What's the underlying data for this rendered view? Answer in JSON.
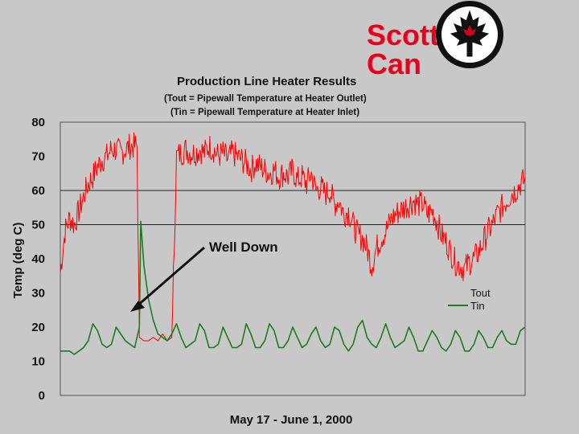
{
  "logo": {
    "text": "Scott\nCan",
    "colors": {
      "text": "#e8001c",
      "badge_bg": "#111111",
      "badge_face": "#ffffff",
      "leaf": "#111111",
      "leaf_accent": "#d2001e"
    }
  },
  "chart_data": {
    "type": "line",
    "title": "Production Line Heater Results",
    "subtitle_lines": [
      "(Tout = Pipewall Temperature at Heater Outlet)",
      "(Tin = Pipewall Temperature at Heater Inlet)"
    ],
    "xlabel": "May 17 - June 1, 2000",
    "ylabel": "Temp (deg C)",
    "ylim": [
      0,
      80
    ],
    "yticks": [
      0,
      10,
      20,
      30,
      40,
      50,
      60,
      70,
      80
    ],
    "gridlines_y": [
      50,
      60
    ],
    "legend": {
      "placement": "right",
      "entries": [
        "Tout",
        "Tin"
      ]
    },
    "annotation": {
      "text": "Well Down",
      "points_to": "Tin"
    },
    "x_domain": [
      0,
      100
    ],
    "series": [
      {
        "name": "Tout",
        "color": "#ff0000",
        "points": [
          [
            0,
            36
          ],
          [
            1,
            48
          ],
          [
            2,
            52
          ],
          [
            3,
            50
          ],
          [
            4,
            54
          ],
          [
            5,
            58
          ],
          [
            6,
            62
          ],
          [
            7,
            64
          ],
          [
            8,
            67
          ],
          [
            9,
            69
          ],
          [
            10,
            70
          ],
          [
            11,
            72
          ],
          [
            12,
            72
          ],
          [
            13,
            71
          ],
          [
            14,
            72
          ],
          [
            15,
            73
          ],
          [
            16,
            73
          ],
          [
            16.5,
            73
          ],
          [
            17,
            17
          ],
          [
            18,
            16
          ],
          [
            19,
            16
          ],
          [
            20,
            17
          ],
          [
            21,
            16
          ],
          [
            22,
            18
          ],
          [
            23,
            16
          ],
          [
            24,
            17
          ],
          [
            25,
            70
          ],
          [
            26,
            71
          ],
          [
            27,
            72
          ],
          [
            28,
            71
          ],
          [
            29,
            71
          ],
          [
            30,
            72
          ],
          [
            31,
            71
          ],
          [
            32,
            73
          ],
          [
            33,
            72
          ],
          [
            34,
            70
          ],
          [
            35,
            71
          ],
          [
            36,
            69
          ],
          [
            37,
            71
          ],
          [
            38,
            70
          ],
          [
            39,
            69
          ],
          [
            40,
            68
          ],
          [
            41,
            66
          ],
          [
            42,
            68
          ],
          [
            43,
            67
          ],
          [
            44,
            66
          ],
          [
            45,
            65
          ],
          [
            46,
            66
          ],
          [
            47,
            64
          ],
          [
            48,
            65
          ],
          [
            49,
            64
          ],
          [
            50,
            66
          ],
          [
            51,
            63
          ],
          [
            52,
            64
          ],
          [
            53,
            62
          ],
          [
            54,
            65
          ],
          [
            55,
            60
          ],
          [
            56,
            61
          ],
          [
            57,
            59
          ],
          [
            58,
            60
          ],
          [
            59,
            56
          ],
          [
            60,
            57
          ],
          [
            61,
            53
          ],
          [
            62,
            54
          ],
          [
            63,
            50
          ],
          [
            64,
            47
          ],
          [
            65,
            46
          ],
          [
            66,
            43
          ],
          [
            67,
            38
          ],
          [
            68,
            43
          ],
          [
            69,
            46
          ],
          [
            70,
            48
          ],
          [
            71,
            51
          ],
          [
            72,
            53
          ],
          [
            73,
            54
          ],
          [
            74,
            55
          ],
          [
            75,
            56
          ],
          [
            76,
            57
          ],
          [
            77,
            56
          ],
          [
            78,
            56
          ],
          [
            79,
            53
          ],
          [
            80,
            54
          ],
          [
            81,
            51
          ],
          [
            82,
            47
          ],
          [
            83,
            45
          ],
          [
            84,
            42
          ],
          [
            85,
            39
          ],
          [
            86,
            38
          ],
          [
            87,
            37
          ],
          [
            88,
            39
          ],
          [
            89,
            40
          ],
          [
            90,
            42
          ],
          [
            91,
            45
          ],
          [
            92,
            48
          ],
          [
            93,
            50
          ],
          [
            94,
            53
          ],
          [
            95,
            55
          ],
          [
            96,
            57
          ],
          [
            97,
            59
          ],
          [
            98,
            60
          ],
          [
            99,
            62
          ],
          [
            100,
            63
          ]
        ],
        "noise_amplitude": 4
      },
      {
        "name": "Tin",
        "color": "#1b7d1b",
        "points": [
          [
            0,
            13
          ],
          [
            1,
            13
          ],
          [
            2,
            13
          ],
          [
            3,
            12
          ],
          [
            4,
            13
          ],
          [
            5,
            14
          ],
          [
            6,
            16
          ],
          [
            7,
            21
          ],
          [
            8,
            19
          ],
          [
            9,
            15
          ],
          [
            10,
            14
          ],
          [
            11,
            15
          ],
          [
            12,
            20
          ],
          [
            13,
            18
          ],
          [
            14,
            16
          ],
          [
            15,
            15
          ],
          [
            16,
            14
          ],
          [
            17,
            20
          ],
          [
            17.3,
            51
          ],
          [
            18,
            38
          ],
          [
            19,
            28
          ],
          [
            20,
            22
          ],
          [
            21,
            18
          ],
          [
            22,
            17
          ],
          [
            23,
            16
          ],
          [
            24,
            18
          ],
          [
            25,
            21
          ],
          [
            26,
            17
          ],
          [
            27,
            14
          ],
          [
            28,
            15
          ],
          [
            29,
            16
          ],
          [
            30,
            21
          ],
          [
            31,
            19
          ],
          [
            32,
            14
          ],
          [
            33,
            14
          ],
          [
            34,
            15
          ],
          [
            35,
            20
          ],
          [
            36,
            17
          ],
          [
            37,
            14
          ],
          [
            38,
            14
          ],
          [
            39,
            15
          ],
          [
            40,
            21
          ],
          [
            41,
            18
          ],
          [
            42,
            14
          ],
          [
            43,
            14
          ],
          [
            44,
            16
          ],
          [
            45,
            21
          ],
          [
            46,
            19
          ],
          [
            47,
            14
          ],
          [
            48,
            14
          ],
          [
            49,
            16
          ],
          [
            50,
            20
          ],
          [
            51,
            17
          ],
          [
            52,
            14
          ],
          [
            53,
            15
          ],
          [
            54,
            18
          ],
          [
            55,
            20
          ],
          [
            56,
            16
          ],
          [
            57,
            14
          ],
          [
            58,
            15
          ],
          [
            59,
            20
          ],
          [
            60,
            19
          ],
          [
            61,
            15
          ],
          [
            62,
            13
          ],
          [
            63,
            15
          ],
          [
            64,
            20
          ],
          [
            65,
            22
          ],
          [
            66,
            17
          ],
          [
            67,
            15
          ],
          [
            68,
            14
          ],
          [
            69,
            17
          ],
          [
            70,
            21
          ],
          [
            71,
            17
          ],
          [
            72,
            14
          ],
          [
            73,
            15
          ],
          [
            74,
            16
          ],
          [
            75,
            20
          ],
          [
            76,
            17
          ],
          [
            77,
            13
          ],
          [
            78,
            13
          ],
          [
            79,
            16
          ],
          [
            80,
            19
          ],
          [
            81,
            17
          ],
          [
            82,
            14
          ],
          [
            83,
            13
          ],
          [
            84,
            15
          ],
          [
            85,
            19
          ],
          [
            86,
            17
          ],
          [
            87,
            13
          ],
          [
            88,
            13
          ],
          [
            89,
            15
          ],
          [
            90,
            19
          ],
          [
            91,
            17
          ],
          [
            92,
            14
          ],
          [
            93,
            14
          ],
          [
            94,
            17
          ],
          [
            95,
            19
          ],
          [
            96,
            16
          ],
          [
            97,
            15
          ],
          [
            98,
            15
          ],
          [
            99,
            19
          ],
          [
            100,
            20
          ]
        ]
      }
    ]
  }
}
